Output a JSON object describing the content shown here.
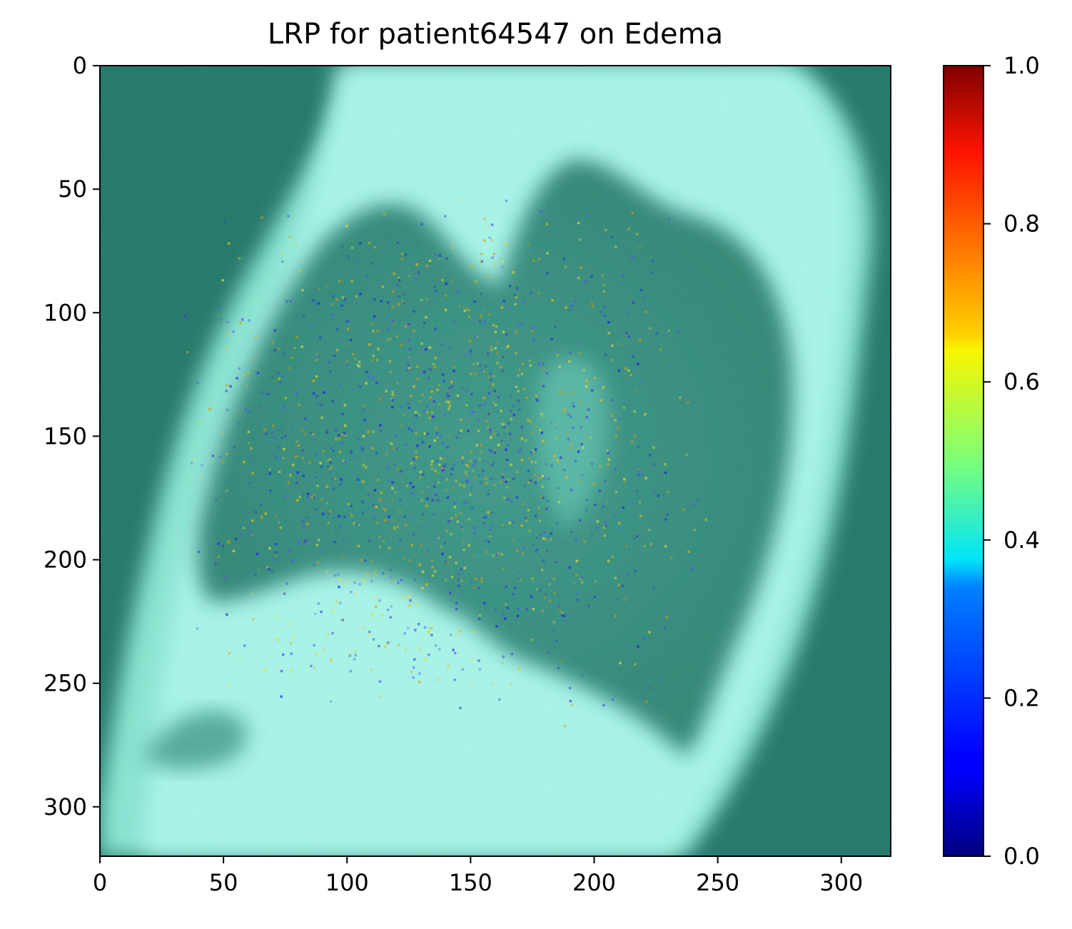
{
  "chart_data": {
    "type": "heatmap",
    "title": "LRP for patient64547 on Edema",
    "xlabel": "",
    "ylabel": "",
    "image_size": [
      320,
      320
    ],
    "xlim": [
      0,
      320
    ],
    "ylim": [
      320,
      0
    ],
    "x_ticks": [
      0,
      50,
      100,
      150,
      200,
      250,
      300
    ],
    "x_tick_labels": [
      "0",
      "50",
      "100",
      "150",
      "200",
      "250",
      "300"
    ],
    "y_ticks": [
      0,
      50,
      100,
      150,
      200,
      250,
      300
    ],
    "y_tick_labels": [
      "0",
      "50",
      "100",
      "150",
      "200",
      "250",
      "300"
    ],
    "colorbar": {
      "colormap": "jet",
      "range": [
        0.0,
        1.0
      ],
      "ticks": [
        0.0,
        0.2,
        0.4,
        0.6,
        0.8,
        1.0
      ],
      "tick_labels": [
        "0.0",
        "0.2",
        "0.4",
        "0.6",
        "0.8",
        "1.0"
      ]
    },
    "background_image": "lateral chest x-ray",
    "image_tint_colors": {
      "dark": "#0f6b5a",
      "mid": "#4fc3a8",
      "light": "#a6f5e8"
    },
    "grid": false
  }
}
